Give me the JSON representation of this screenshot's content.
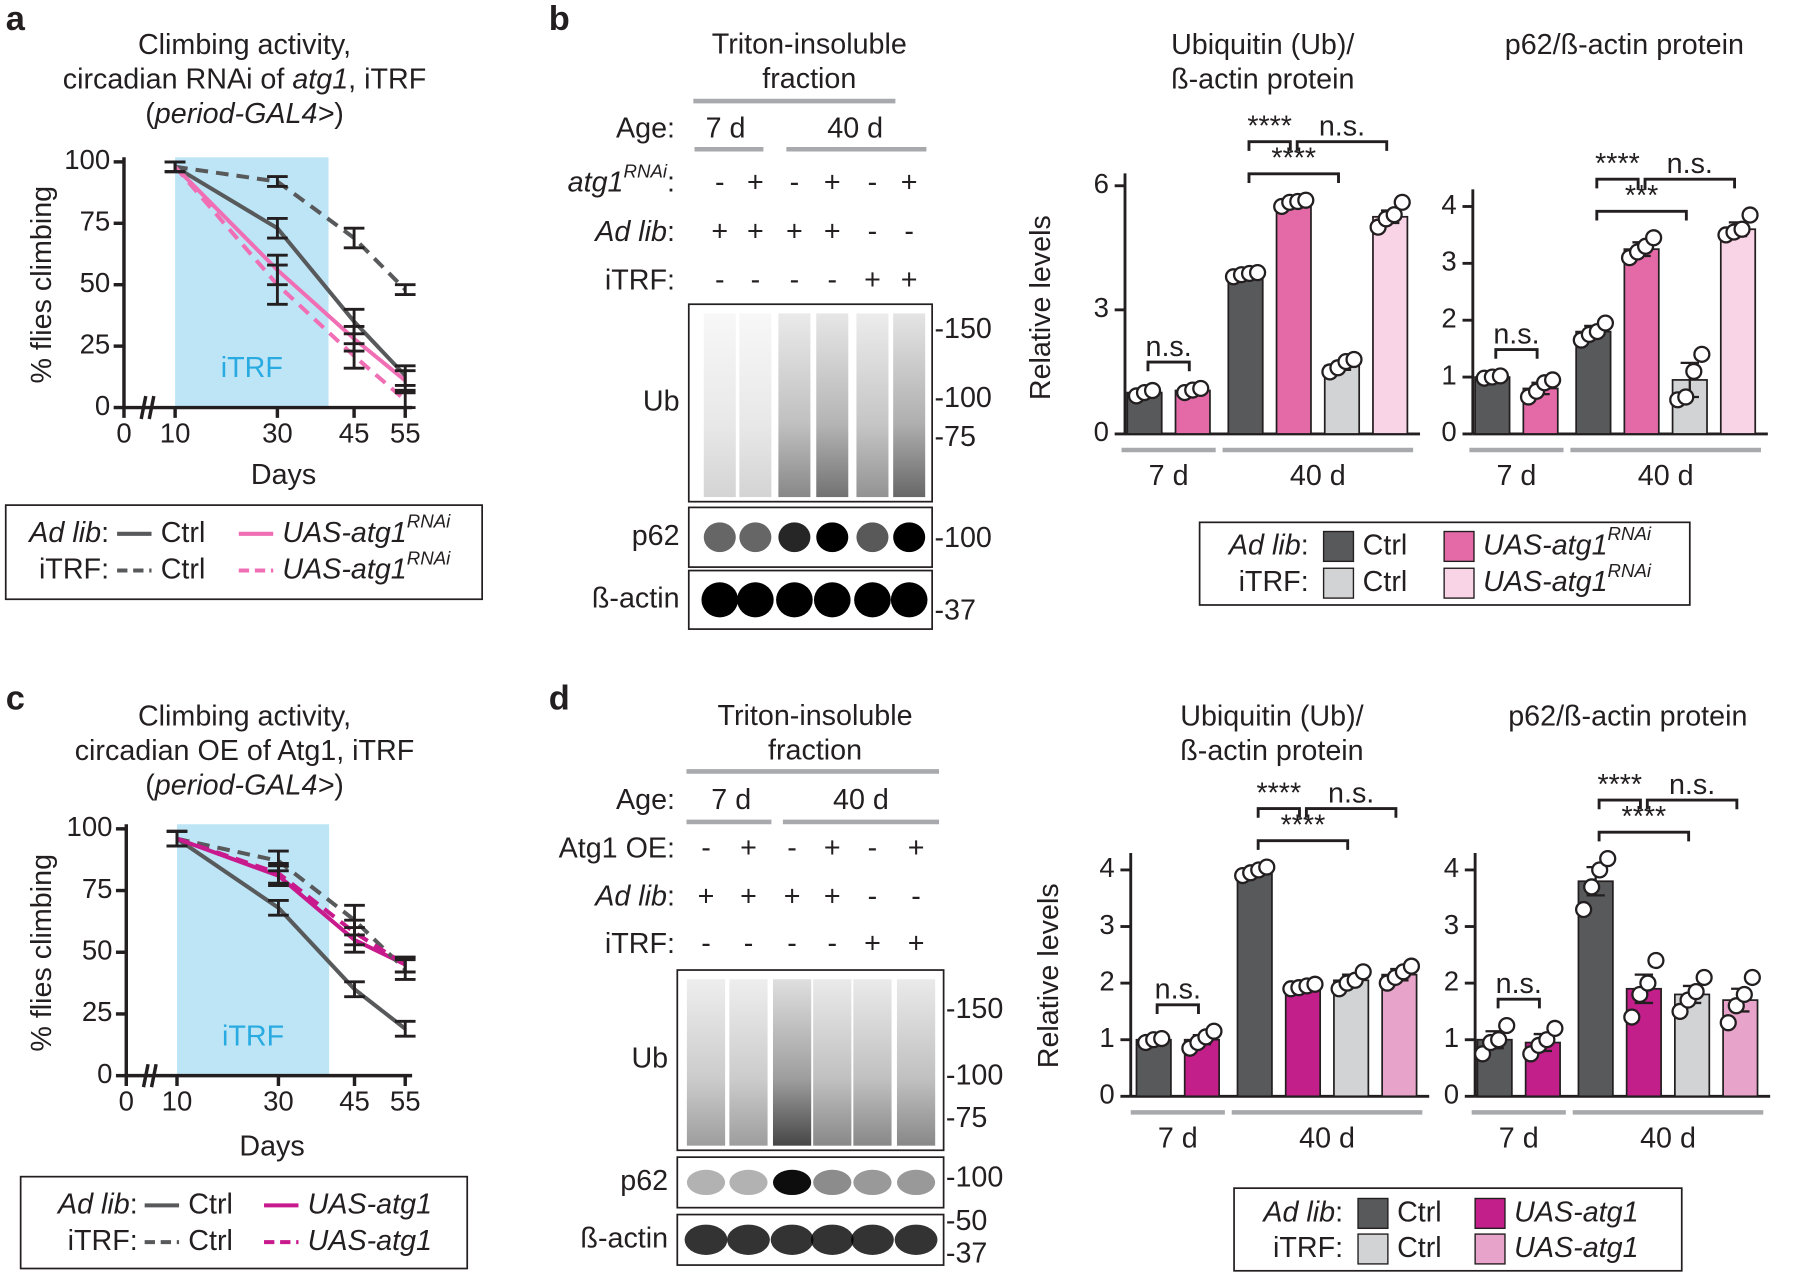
{
  "panels": [
    "a",
    "b",
    "c",
    "d"
  ],
  "chart_data": [
    {
      "type": "line",
      "title": [
        [
          "Climbing activity,"
        ],
        [
          "circadian RNAi of ",
          {
            "i": "atg1"
          },
          ", iTRF"
        ],
        [
          "(",
          {
            "i": "period-GAL4>"
          },
          ")"
        ]
      ],
      "xlabel": "Days",
      "ylabel": "% flies climbing",
      "x": [
        10,
        30,
        45,
        55
      ],
      "xlim": [
        0,
        55
      ],
      "xticks": [
        0,
        10,
        30,
        45,
        55
      ],
      "ylim": [
        0,
        100
      ],
      "yticks": [
        0,
        25,
        50,
        75,
        100
      ],
      "shade": {
        "label": "iTRF",
        "range": [
          10,
          40
        ],
        "color": "#bde5f6",
        "text_color": "#29abe2"
      },
      "series_groups": [
        {
          "label": [
            {
              "i": "Ad lib"
            },
            ":"
          ],
          "series": [
            {
              "name": [
                "Ctrl"
              ],
              "color": "#58595b",
              "dash": false,
              "values": [
                98,
                73,
                35,
                13
              ],
              "errors": [
                2,
                4,
                5,
                4
              ]
            },
            {
              "name": [
                {
                  "i": "UAS-atg1"
                },
                {
                  "isup": "RNAi"
                }
              ],
              "color": "#f06eb4",
              "dash": false,
              "values": [
                98,
                56,
                28,
                11
              ],
              "errors": [
                2,
                6,
                5,
                4
              ]
            }
          ]
        },
        {
          "label": [
            "iTRF:"
          ],
          "series": [
            {
              "name": [
                "Ctrl"
              ],
              "color": "#58595b",
              "dash": true,
              "values": [
                98,
                92,
                69,
                48
              ],
              "errors": [
                2,
                2,
                4,
                2
              ]
            },
            {
              "name": [
                {
                  "i": "UAS-atg1"
                },
                {
                  "isup": "RNAi"
                }
              ],
              "color": "#f06eb4",
              "dash": true,
              "values": [
                98,
                50,
                21,
                3
              ],
              "errors": [
                2,
                8,
                5,
                3
              ]
            }
          ]
        }
      ]
    },
    {
      "type": "bar",
      "title": [
        [
          "Ubiquitin (Ub)/"
        ],
        [
          "ß-actin protein"
        ]
      ],
      "ylabel": "Relative levels",
      "ylim": [
        0,
        6.3
      ],
      "yticks": [
        0,
        3,
        6
      ],
      "groups": [
        {
          "label": "7 d",
          "bars": [
            {
              "value": 1.0,
              "error": 0.05,
              "points": [
                0.92,
                1.0,
                1.05
              ],
              "color": "#58595b"
            },
            {
              "value": 1.05,
              "error": 0.05,
              "points": [
                1.0,
                1.06,
                1.1
              ],
              "color": "#e36aa6"
            }
          ]
        },
        {
          "label": "40 d",
          "bars": [
            {
              "value": 3.85,
              "error": 0.05,
              "points": [
                3.8,
                3.85,
                3.88,
                3.9
              ],
              "color": "#58595b"
            },
            {
              "value": 5.6,
              "error": 0.05,
              "points": [
                5.5,
                5.6,
                5.62,
                5.65
              ],
              "color": "#e36aa6"
            },
            {
              "value": 1.65,
              "error": 0.1,
              "points": [
                1.5,
                1.6,
                1.75,
                1.8
              ],
              "color": "#d1d3d4"
            },
            {
              "value": 5.25,
              "error": 0.15,
              "points": [
                5.0,
                5.2,
                5.3,
                5.6
              ],
              "color": "#f9d3e6"
            }
          ]
        }
      ],
      "brackets": [
        {
          "label": "n.s.",
          "bars": [
            0,
            1
          ]
        },
        {
          "label": "****",
          "bars": [
            2,
            4
          ]
        },
        {
          "label": "****",
          "bars": [
            2,
            3
          ]
        },
        {
          "label": "n.s.",
          "bars": [
            3,
            5
          ]
        }
      ],
      "legend": [
        {
          "label": [
            {
              "i": "Ad lib"
            },
            ":"
          ],
          "entries": [
            {
              "name": [
                "Ctrl"
              ],
              "color": "#58595b"
            },
            {
              "name": [
                {
                  "i": "UAS-atg1"
                },
                {
                  "isup": "RNAi"
                }
              ],
              "color": "#e36aa6"
            }
          ]
        },
        {
          "label": [
            "iTRF:"
          ],
          "entries": [
            {
              "name": [
                "Ctrl"
              ],
              "color": "#d1d3d4"
            },
            {
              "name": [
                {
                  "i": "UAS-atg1"
                },
                {
                  "isup": "RNAi"
                }
              ],
              "color": "#f9d3e6"
            }
          ]
        }
      ]
    },
    {
      "type": "bar",
      "title": [
        [
          "p62/ß-actin protein"
        ]
      ],
      "ylim": [
        0,
        4.3
      ],
      "yticks": [
        0,
        1,
        2,
        3,
        4
      ],
      "groups": [
        {
          "label": "7 d",
          "bars": [
            {
              "value": 1.0,
              "error": 0.03,
              "points": [
                0.98,
                1.0,
                1.02
              ],
              "color": "#58595b"
            },
            {
              "value": 0.8,
              "error": 0.1,
              "points": [
                0.65,
                0.75,
                0.9,
                0.95
              ],
              "color": "#e36aa6"
            }
          ]
        },
        {
          "label": "40 d",
          "bars": [
            {
              "value": 1.8,
              "error": 0.1,
              "points": [
                1.65,
                1.75,
                1.8,
                1.95
              ],
              "color": "#58595b"
            },
            {
              "value": 3.25,
              "error": 0.12,
              "points": [
                3.1,
                3.2,
                3.3,
                3.45
              ],
              "color": "#e36aa6"
            },
            {
              "value": 0.95,
              "error": 0.3,
              "points": [
                0.6,
                0.65,
                1.1,
                1.4
              ],
              "color": "#d1d3d4"
            },
            {
              "value": 3.6,
              "error": 0.12,
              "points": [
                3.5,
                3.55,
                3.6,
                3.85
              ],
              "color": "#f9d3e6"
            }
          ]
        }
      ],
      "brackets": [
        {
          "label": "n.s.",
          "bars": [
            0,
            1
          ]
        },
        {
          "label": "***",
          "bars": [
            2,
            4
          ]
        },
        {
          "label": "****",
          "bars": [
            2,
            3
          ]
        },
        {
          "label": "n.s.",
          "bars": [
            3,
            5
          ]
        }
      ]
    },
    {
      "type": "line",
      "title": [
        [
          "Climbing activity,"
        ],
        [
          "circadian OE of Atg1, iTRF"
        ],
        [
          "(",
          {
            "i": "period-GAL4>"
          },
          ")"
        ]
      ],
      "xlabel": "Days",
      "ylabel": "% flies climbing",
      "x": [
        10,
        30,
        45,
        55
      ],
      "xlim": [
        0,
        55
      ],
      "xticks": [
        0,
        10,
        30,
        45,
        55
      ],
      "ylim": [
        0,
        100
      ],
      "yticks": [
        0,
        25,
        50,
        75,
        100
      ],
      "shade": {
        "label": "iTRF",
        "range": [
          10,
          40
        ],
        "color": "#bde5f6",
        "text_color": "#29abe2"
      },
      "series_groups": [
        {
          "label": [
            {
              "i": "Ad lib"
            },
            ":"
          ],
          "series": [
            {
              "name": [
                "Ctrl"
              ],
              "color": "#58595b",
              "dash": false,
              "values": [
                96,
                68,
                35,
                19
              ],
              "errors": [
                3,
                3,
                3,
                3
              ]
            },
            {
              "name": [
                {
                  "i": "UAS-atg1"
                }
              ],
              "color": "#c8198d",
              "dash": false,
              "values": [
                96,
                81,
                55,
                45
              ],
              "errors": [
                3,
                4,
                5,
                3
              ]
            }
          ]
        },
        {
          "label": [
            "iTRF:"
          ],
          "series": [
            {
              "name": [
                "Ctrl"
              ],
              "color": "#58595b",
              "dash": true,
              "values": [
                96,
                87,
                63,
                43
              ],
              "errors": [
                3,
                4,
                6,
                4
              ]
            },
            {
              "name": [
                {
                  "i": "UAS-atg1"
                }
              ],
              "color": "#c8198d",
              "dash": true,
              "values": [
                96,
                82,
                58,
                45
              ],
              "errors": [
                3,
                4,
                5,
                3
              ]
            }
          ]
        }
      ]
    },
    {
      "type": "bar",
      "title": [
        [
          "Ubiquitin (Ub)/"
        ],
        [
          "ß-actin protein"
        ]
      ],
      "ylabel": "Relative levels",
      "ylim": [
        0,
        4.3
      ],
      "yticks": [
        0,
        1,
        2,
        3,
        4
      ],
      "groups": [
        {
          "label": "7 d",
          "bars": [
            {
              "value": 1.0,
              "error": 0.05,
              "points": [
                0.95,
                1.0,
                1.02
              ],
              "color": "#58595b"
            },
            {
              "value": 1.0,
              "error": 0.08,
              "points": [
                0.85,
                0.95,
                1.05,
                1.15
              ],
              "color": "#c21f8a"
            }
          ]
        },
        {
          "label": "40 d",
          "bars": [
            {
              "value": 3.97,
              "error": 0.05,
              "points": [
                3.9,
                3.95,
                4.0,
                4.05
              ],
              "color": "#58595b"
            },
            {
              "value": 1.93,
              "error": 0.05,
              "points": [
                1.9,
                1.92,
                1.95,
                1.98
              ],
              "color": "#c21f8a"
            },
            {
              "value": 2.05,
              "error": 0.1,
              "points": [
                1.9,
                2.0,
                2.05,
                2.2
              ],
              "color": "#d1d3d4"
            },
            {
              "value": 2.15,
              "error": 0.1,
              "points": [
                2.0,
                2.1,
                2.2,
                2.3
              ],
              "color": "#e7a3c9"
            }
          ]
        }
      ],
      "brackets": [
        {
          "label": "n.s.",
          "bars": [
            0,
            1
          ]
        },
        {
          "label": "****",
          "bars": [
            2,
            4
          ]
        },
        {
          "label": "****",
          "bars": [
            2,
            3
          ]
        },
        {
          "label": "n.s.",
          "bars": [
            3,
            5
          ]
        }
      ],
      "legend": [
        {
          "label": [
            {
              "i": "Ad lib"
            },
            ":"
          ],
          "entries": [
            {
              "name": [
                "Ctrl"
              ],
              "color": "#58595b"
            },
            {
              "name": [
                {
                  "i": "UAS-atg1"
                }
              ],
              "color": "#c21f8a"
            }
          ]
        },
        {
          "label": [
            "iTRF:"
          ],
          "entries": [
            {
              "name": [
                "Ctrl"
              ],
              "color": "#d1d3d4"
            },
            {
              "name": [
                {
                  "i": "UAS-atg1"
                }
              ],
              "color": "#e7a3c9"
            }
          ]
        }
      ]
    },
    {
      "type": "bar",
      "title": [
        [
          "p62/ß-actin protein"
        ]
      ],
      "ylim": [
        0,
        4.3
      ],
      "yticks": [
        0,
        1,
        2,
        3,
        4
      ],
      "groups": [
        {
          "label": "7 d",
          "bars": [
            {
              "value": 1.0,
              "error": 0.15,
              "points": [
                0.75,
                0.95,
                1.0,
                1.25
              ],
              "color": "#58595b"
            },
            {
              "value": 0.95,
              "error": 0.15,
              "points": [
                0.75,
                0.9,
                1.0,
                1.2
              ],
              "color": "#c21f8a"
            }
          ]
        },
        {
          "label": "40 d",
          "bars": [
            {
              "value": 3.8,
              "error": 0.25,
              "points": [
                3.3,
                3.7,
                4.0,
                4.2
              ],
              "color": "#58595b"
            },
            {
              "value": 1.9,
              "error": 0.25,
              "points": [
                1.4,
                1.8,
                2.0,
                2.4
              ],
              "color": "#c21f8a"
            },
            {
              "value": 1.8,
              "error": 0.15,
              "points": [
                1.5,
                1.7,
                1.85,
                2.1
              ],
              "color": "#d1d3d4"
            },
            {
              "value": 1.7,
              "error": 0.2,
              "points": [
                1.3,
                1.6,
                1.8,
                2.1
              ],
              "color": "#e7a3c9"
            }
          ]
        }
      ],
      "brackets": [
        {
          "label": "n.s.",
          "bars": [
            0,
            1
          ]
        },
        {
          "label": "****",
          "bars": [
            2,
            4
          ]
        },
        {
          "label": "****",
          "bars": [
            2,
            3
          ]
        },
        {
          "label": "n.s.",
          "bars": [
            3,
            5
          ]
        }
      ]
    }
  ],
  "blots": [
    {
      "title": [
        "Triton-insoluble",
        "fraction"
      ],
      "age_label": "Age:",
      "ages": [
        "7 d",
        "40 d"
      ],
      "rows": [
        {
          "label": [
            {
              "i": "atg1"
            },
            {
              "isup": "RNAi"
            },
            ":"
          ],
          "signs": [
            "-",
            "+",
            "-",
            "+",
            "-",
            "+"
          ]
        },
        {
          "label": [
            {
              "i": "Ad lib"
            },
            ":"
          ],
          "signs": [
            "+",
            "+",
            "+",
            "+",
            "-",
            "-"
          ]
        },
        {
          "label": [
            "iTRF:"
          ],
          "signs": [
            "-",
            "-",
            "-",
            "-",
            "+",
            "+"
          ]
        }
      ],
      "bands": [
        {
          "label": "Ub",
          "markers": [
            "-150",
            "-100",
            "-75"
          ]
        },
        {
          "label": "p62",
          "markers": [
            "-100"
          ]
        },
        {
          "label": "ß-actin",
          "markers": [
            "-37"
          ]
        }
      ]
    },
    {
      "title": [
        "Triton-insoluble",
        "fraction"
      ],
      "age_label": "Age:",
      "ages": [
        "7 d",
        "40 d"
      ],
      "rows": [
        {
          "label": [
            "Atg1 OE:"
          ],
          "signs": [
            "-",
            "+",
            "-",
            "+",
            "-",
            "+"
          ]
        },
        {
          "label": [
            {
              "i": "Ad lib"
            },
            ":"
          ],
          "signs": [
            "+",
            "+",
            "+",
            "+",
            "-",
            "-"
          ]
        },
        {
          "label": [
            "iTRF:"
          ],
          "signs": [
            "-",
            "-",
            "-",
            "-",
            "+",
            "+"
          ]
        }
      ],
      "bands": [
        {
          "label": "Ub",
          "markers": [
            "-150",
            "-100",
            "-75"
          ]
        },
        {
          "label": "p62",
          "markers": [
            "-100"
          ]
        },
        {
          "label": "ß-actin",
          "markers": [
            "-50",
            "-37"
          ]
        }
      ]
    }
  ]
}
